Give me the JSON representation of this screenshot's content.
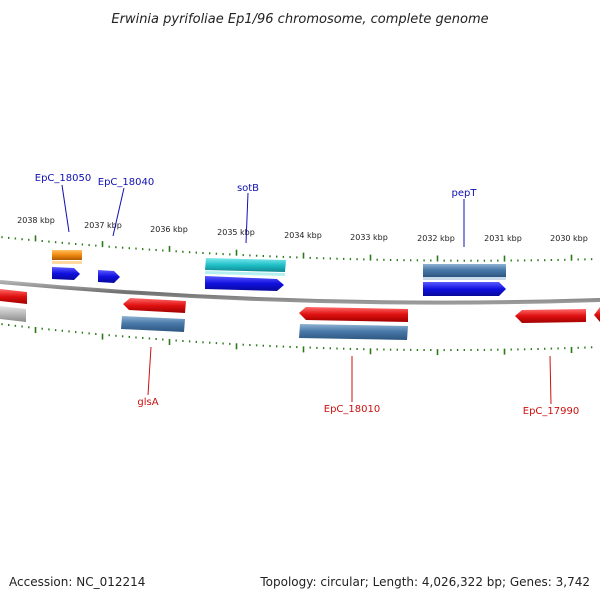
{
  "title": "Erwinia pyrifoliae Ep1/96 chromosome, complete genome",
  "footer": {
    "accession": "Accession: NC_012214",
    "summary": "Topology: circular; Length: 4,026,322 bp; Genes: 3,742"
  },
  "scale": {
    "ticks": [
      "2038 kbp",
      "2037 kbp",
      "2036 kbp",
      "2035 kbp",
      "2034 kbp",
      "2033 kbp",
      "2032 kbp",
      "2031 kbp",
      "2030 kbp"
    ]
  },
  "gene_labels": {
    "top": [
      "EpC_18050",
      "EpC_18040",
      "sotB",
      "pepT"
    ],
    "bottom": [
      "glsA",
      "EpC_18010",
      "EpC_17990"
    ]
  },
  "colors": {
    "label_top": "#1010b0",
    "label_bottom": "#cc1010",
    "tick": "#2a7a1a",
    "backbone": "#808080",
    "gene_blue": "#1010e0",
    "gene_steel": "#4a7aaa",
    "gene_cyan": "#20c0c8",
    "gene_orange": "#f08a10",
    "gene_red": "#e01010",
    "gene_gray": "#b8b8b8"
  }
}
